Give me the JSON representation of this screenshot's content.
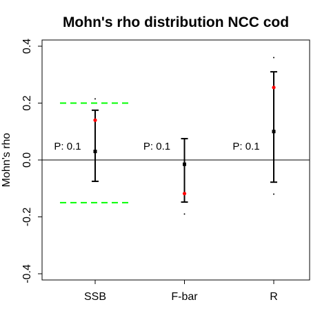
{
  "chart_data": {
    "type": "errorbar",
    "title": "Mohn's rho distribution NCC cod",
    "xlabel": "",
    "ylabel": "Mohn's rho",
    "ylim": [
      -0.44,
      0.43
    ],
    "yticks": [
      -0.4,
      -0.2,
      0.0,
      0.2,
      0.4
    ],
    "ytick_labels": [
      "-0.4",
      "-0.2",
      "0.0",
      "0.2",
      "0.4"
    ],
    "categories": [
      "SSB",
      "F-bar",
      "R"
    ],
    "series": [
      {
        "median": [
          0.03,
          -0.015,
          0.1
        ],
        "lower": [
          -0.075,
          -0.148,
          -0.078
        ],
        "upper": [
          0.175,
          0.075,
          0.31
        ],
        "min": [
          -0.075,
          -0.19,
          -0.12
        ],
        "max": [
          0.215,
          0.075,
          0.36
        ],
        "point_estimate": [
          0.14,
          -0.118,
          0.255
        ]
      }
    ],
    "annotations": [
      "P: 0.1",
      "P: 0.1",
      "P: 0.1"
    ],
    "reference_lines": {
      "horizontal": [
        0.0
      ],
      "dashed": [
        0.2,
        -0.15
      ]
    },
    "grid": false,
    "colors": {
      "point_estimate": "#ff0000",
      "dashed_lines": "#00ff00",
      "bars": "#000000"
    }
  }
}
